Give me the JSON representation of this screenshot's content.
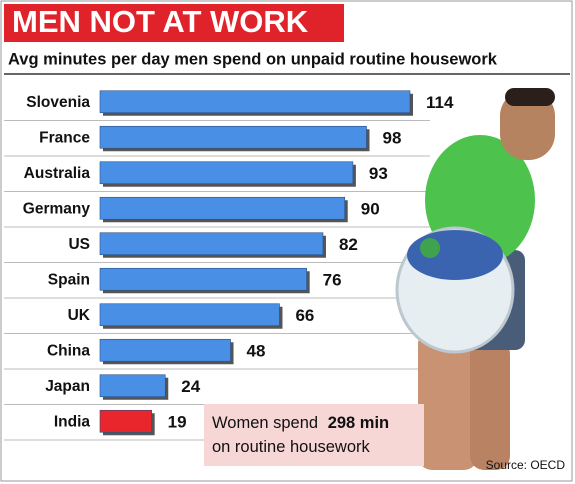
{
  "chart_data": {
    "type": "bar",
    "orientation": "horizontal",
    "title": "MEN NOT AT WORK",
    "subtitle": "Avg minutes per day men spend on unpaid routine housework",
    "categories": [
      "Slovenia",
      "France",
      "Australia",
      "Germany",
      "US",
      "Spain",
      "UK",
      "China",
      "Japan",
      "India"
    ],
    "values": [
      114,
      98,
      93,
      90,
      82,
      76,
      66,
      48,
      24,
      19
    ],
    "colors": [
      "#4a8fe6",
      "#4a8fe6",
      "#4a8fe6",
      "#4a8fe6",
      "#4a8fe6",
      "#4a8fe6",
      "#4a8fe6",
      "#4a8fe6",
      "#4a8fe6",
      "#e8262b"
    ],
    "annotation": [
      "Women spend",
      "298 min",
      "on routine housework"
    ],
    "source": "Source: OECD"
  }
}
